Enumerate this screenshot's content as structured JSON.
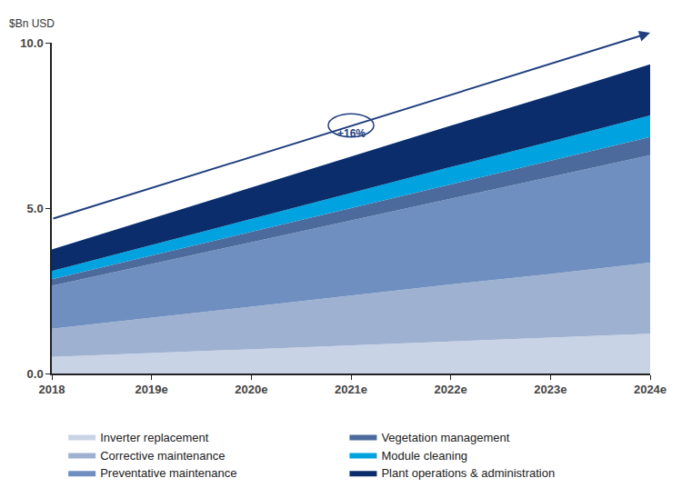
{
  "chart_data": {
    "type": "area",
    "stacked": true,
    "grid": false,
    "ylabel": "$Bn USD",
    "annotations": [
      {
        "text": "+16%"
      }
    ],
    "categories": [
      "2018",
      "2019e",
      "2020e",
      "2021e",
      "2022e",
      "2023e",
      "2024e"
    ],
    "ylim": [
      0,
      10
    ],
    "yticks": [
      {
        "value": 0,
        "label": "0.0"
      },
      {
        "value": 5,
        "label": "5.0"
      },
      {
        "value": 10,
        "label": "10.0"
      }
    ],
    "legend": "bottom",
    "series": [
      {
        "name": "Inverter replacement",
        "color": "#c9d3e6",
        "values": [
          0.5,
          0.62,
          0.73,
          0.85,
          0.97,
          1.08,
          1.2
        ]
      },
      {
        "name": "Corrective maintenance",
        "color": "#9fb1d1",
        "values": [
          0.85,
          1.07,
          1.28,
          1.5,
          1.72,
          1.93,
          2.15
        ]
      },
      {
        "name": "Preventative maintenance",
        "color": "#6f8fc0",
        "values": [
          1.3,
          1.62,
          1.95,
          2.28,
          2.6,
          2.93,
          3.25
        ]
      },
      {
        "name": "Vegetation management",
        "color": "#4c6b9c",
        "values": [
          0.2,
          0.26,
          0.32,
          0.38,
          0.43,
          0.49,
          0.55
        ]
      },
      {
        "name": "Module cleaning",
        "color": "#00a3e0",
        "values": [
          0.25,
          0.32,
          0.38,
          0.45,
          0.52,
          0.58,
          0.65
        ]
      },
      {
        "name": "Plant operations & administration",
        "color": "#0b2d6b",
        "values": [
          0.65,
          0.8,
          0.95,
          1.1,
          1.25,
          1.4,
          1.55
        ]
      }
    ]
  }
}
